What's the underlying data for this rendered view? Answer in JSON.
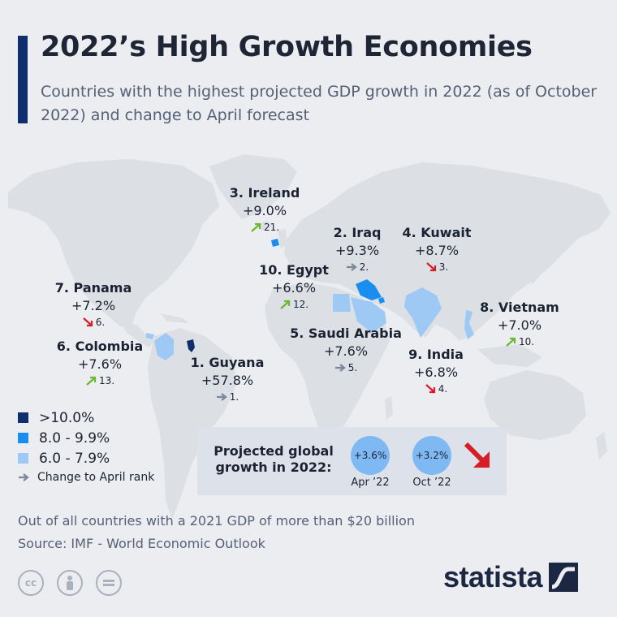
{
  "header": {
    "title": "2022’s High Growth Economies",
    "subtitle": "Countries with the highest projected GDP growth in 2022 (as of October 2022) and change to April forecast"
  },
  "colors": {
    "over10": "#0e2f6c",
    "8to9_9": "#1a8ef0",
    "6to7_9": "#9ec9f5",
    "land": "#dcdfe4",
    "up": "#6ab82e",
    "down": "#d71d25",
    "same": "#7a8799"
  },
  "countries": [
    {
      "name": "1. Guyana",
      "growth": "+57.8%",
      "rank": "1.",
      "trend": "same"
    },
    {
      "name": "2. Iraq",
      "growth": "+9.3%",
      "rank": "2.",
      "trend": "same"
    },
    {
      "name": "3. Ireland",
      "growth": "+9.0%",
      "rank": "21.",
      "trend": "up"
    },
    {
      "name": "4. Kuwait",
      "growth": "+8.7%",
      "rank": "3.",
      "trend": "down"
    },
    {
      "name": "5. Saudi Arabia",
      "growth": "+7.6%",
      "rank": "5.",
      "trend": "same"
    },
    {
      "name": "6. Colombia",
      "growth": "+7.6%",
      "rank": "13.",
      "trend": "up"
    },
    {
      "name": "7. Panama",
      "growth": "+7.2%",
      "rank": "6.",
      "trend": "down"
    },
    {
      "name": "8. Vietnam",
      "growth": "+7.0%",
      "rank": "10.",
      "trend": "up"
    },
    {
      "name": "9. India",
      "growth": "+6.8%",
      "rank": "4.",
      "trend": "down"
    },
    {
      "name": "10. Egypt",
      "growth": "+6.6%",
      "rank": "12.",
      "trend": "up"
    }
  ],
  "legend": {
    "items": [
      ">10.0%",
      "8.0 - 9.9%",
      "6.0 - 7.9%"
    ],
    "note": "Change to April rank"
  },
  "global": {
    "label": "Projected global growth in 2022:",
    "apr_value": "+3.6%",
    "apr_label": "Apr ’22",
    "oct_value": "+3.2%",
    "oct_label": "Oct ’22"
  },
  "footer": {
    "note": "Out of all countries with a 2021 GDP of more than $20 billion",
    "source": "Source: IMF - World Economic Outlook",
    "brand": "statista"
  },
  "license_icons": [
    "creative-commons-icon",
    "attribution-icon",
    "no-derivatives-icon"
  ]
}
